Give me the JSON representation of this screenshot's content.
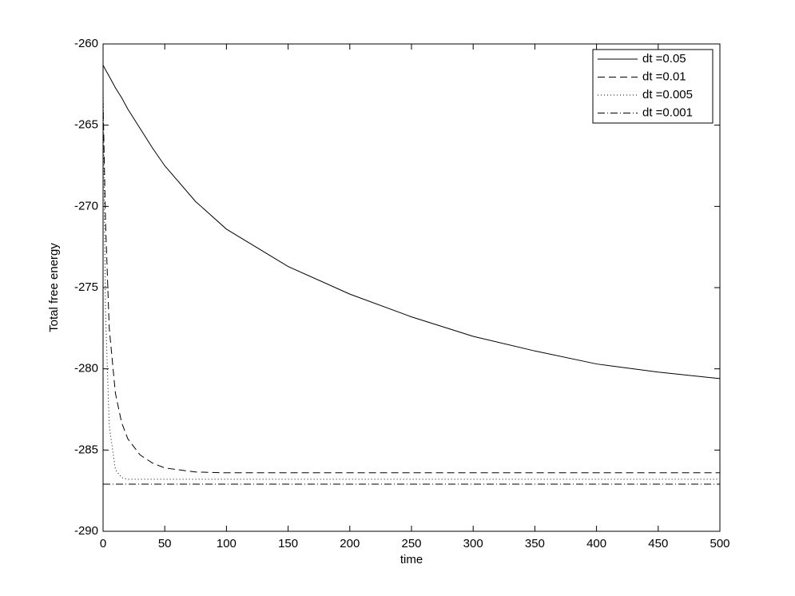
{
  "chart_data": {
    "type": "line",
    "x_label": "time",
    "y_label": "Total free energy",
    "x": [
      0,
      2,
      5,
      10,
      15,
      20,
      30,
      40,
      50,
      75,
      100,
      150,
      200,
      250,
      300,
      350,
      400,
      450,
      500
    ],
    "series": [
      {
        "name": "dt =0.05",
        "color": "#000000",
        "dash": "solid",
        "values": [
          -261.3,
          -261.6,
          -262.0,
          -262.7,
          -263.3,
          -264.0,
          -265.2,
          -266.4,
          -267.5,
          -269.7,
          -271.4,
          -273.7,
          -275.4,
          -276.8,
          -278.0,
          -278.9,
          -279.7,
          -280.2,
          -280.6
        ]
      },
      {
        "name": "dt =0.01",
        "color": "#000000",
        "dash": "dashed",
        "values": [
          -263.5,
          -271.0,
          -277.5,
          -281.5,
          -283.3,
          -284.3,
          -285.3,
          -285.8,
          -286.1,
          -286.35,
          -286.4,
          -286.4,
          -286.4,
          -286.4,
          -286.4,
          -286.4,
          -286.4,
          -286.4,
          -286.4
        ]
      },
      {
        "name": "dt =0.005",
        "color": "#000000",
        "dash": "dotted",
        "values": [
          -262.5,
          -276.5,
          -283.5,
          -286.2,
          -286.7,
          -286.8,
          -286.8,
          -286.8,
          -286.8,
          -286.8,
          -286.8,
          -286.8,
          -286.8,
          -286.8,
          -286.8,
          -286.8,
          -286.8,
          -286.8,
          -286.8
        ]
      },
      {
        "name": "dt =0.001",
        "color": "#000000",
        "dash": "dashdot",
        "values": [
          -287.1,
          -287.1,
          -287.1,
          -287.1,
          -287.1,
          -287.1,
          -287.1,
          -287.1,
          -287.1,
          -287.1,
          -287.1,
          -287.1,
          -287.1,
          -287.1,
          -287.1,
          -287.1,
          -287.1,
          -287.1,
          -287.1
        ]
      }
    ],
    "xlim": [
      0,
      500
    ],
    "xticks": [
      0,
      50,
      100,
      150,
      200,
      250,
      300,
      350,
      400,
      450,
      500
    ],
    "ylim": [
      -290,
      -260
    ],
    "yticks": [
      -290,
      -285,
      -280,
      -275,
      -270,
      -265,
      -260
    ],
    "grid": false,
    "legend": "top-right"
  }
}
